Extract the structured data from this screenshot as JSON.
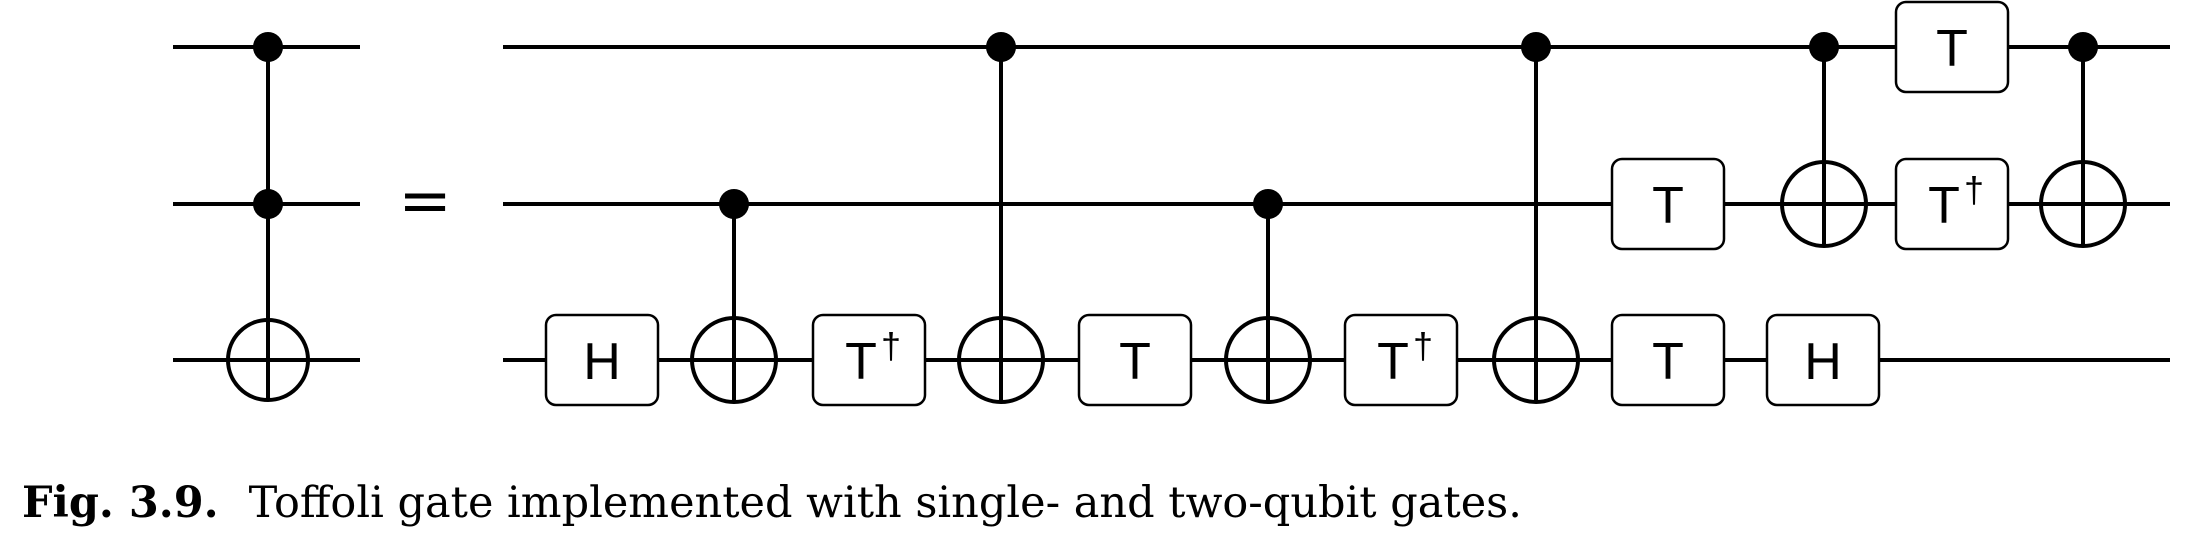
{
  "diagram": {
    "equals_sign": "=",
    "toffoli": {
      "controls": [
        0,
        1
      ],
      "target": 2
    },
    "gates": [
      {
        "type": "single",
        "qubit": 2,
        "label": "H"
      },
      {
        "type": "cnot",
        "control": 1,
        "target": 2
      },
      {
        "type": "single",
        "qubit": 2,
        "label": "T",
        "dagger": true
      },
      {
        "type": "cnot",
        "control": 0,
        "target": 2
      },
      {
        "type": "single",
        "qubit": 2,
        "label": "T"
      },
      {
        "type": "cnot",
        "control": 1,
        "target": 2
      },
      {
        "type": "single",
        "qubit": 2,
        "label": "T",
        "dagger": true
      },
      {
        "type": "cnot",
        "control": 0,
        "target": 2
      },
      {
        "type": "single",
        "qubit": 1,
        "label": "T"
      },
      {
        "type": "single",
        "qubit": 2,
        "label": "T"
      },
      {
        "type": "cnot",
        "control": 0,
        "target": 1
      },
      {
        "type": "single",
        "qubit": 2,
        "label": "H"
      },
      {
        "type": "single",
        "qubit": 0,
        "label": "T"
      },
      {
        "type": "single",
        "qubit": 1,
        "label": "T",
        "dagger": true
      },
      {
        "type": "cnot",
        "control": 0,
        "target": 1
      }
    ],
    "dagger_symbol": "†"
  },
  "caption": {
    "label": "Fig. 3.9.",
    "text": "Toffoli gate implemented with single- and two-qubit gates."
  }
}
